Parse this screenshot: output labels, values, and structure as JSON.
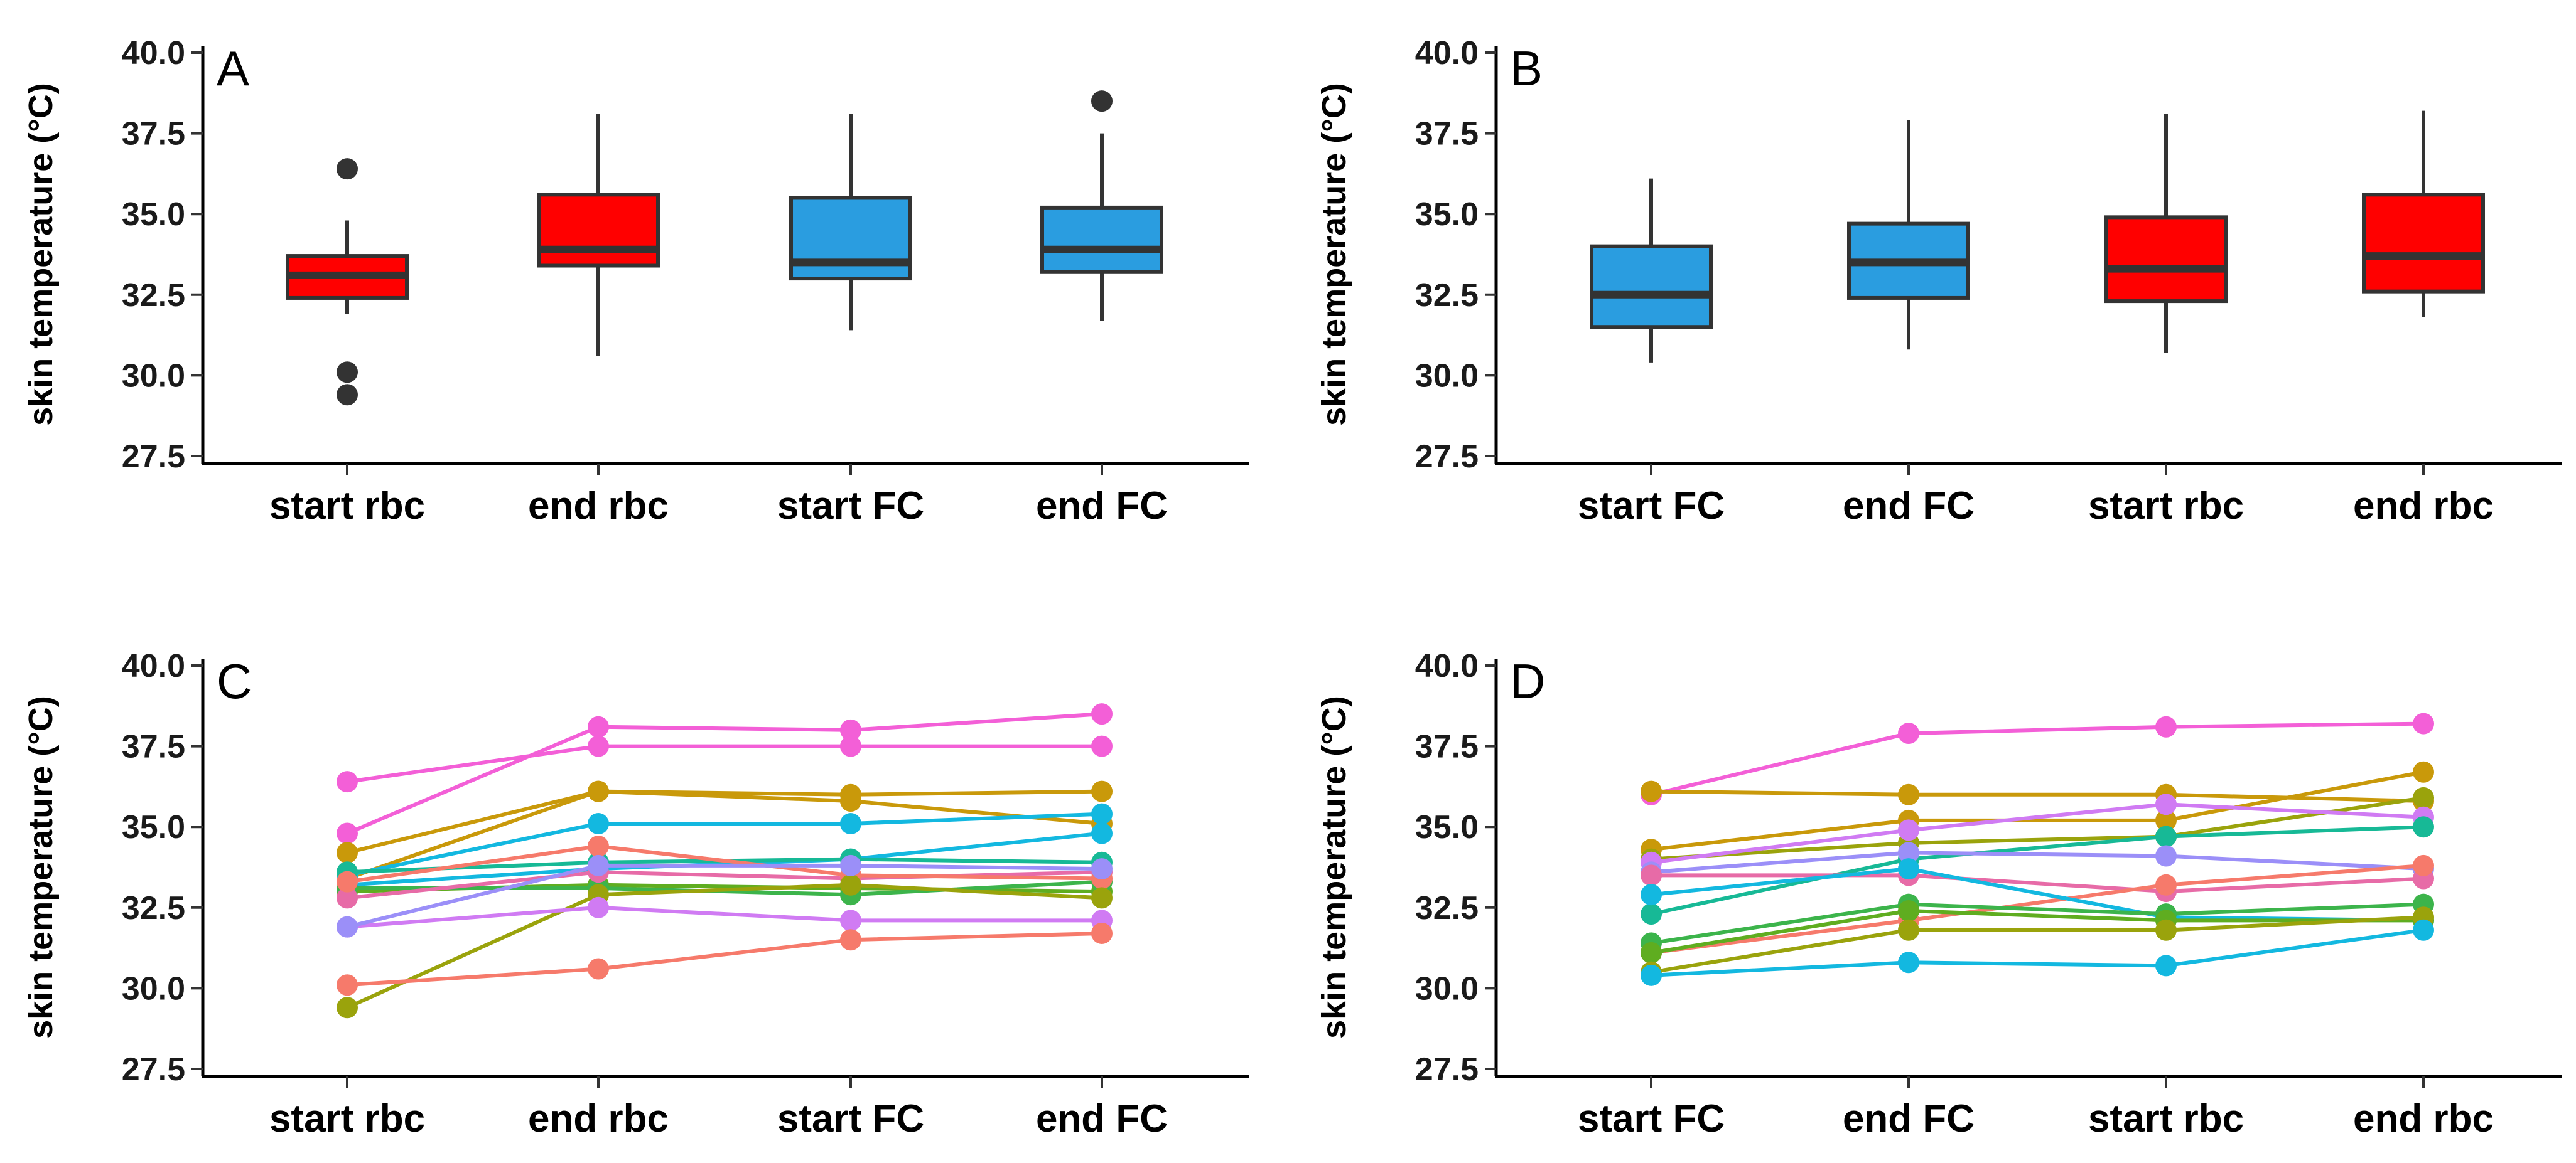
{
  "chart_data": [
    {
      "type": "box",
      "panel_label": "A",
      "ylabel": "skin temperature (°C)",
      "ylim": [
        27.5,
        40.0
      ],
      "yticks": [
        "27.5",
        "30.0",
        "32.5",
        "35.0",
        "37.5",
        "40.0"
      ],
      "categories": [
        "start rbc",
        "end rbc",
        "start FC",
        "end FC"
      ],
      "fills": [
        "#ff0000",
        "#ff0000",
        "#2a9de0",
        "#2a9de0"
      ],
      "boxes": [
        {
          "whisker_low": 31.9,
          "q1": 32.4,
          "median": 33.1,
          "q3": 33.7,
          "whisker_high": 34.8,
          "outliers": [
            36.4,
            30.1,
            29.4
          ]
        },
        {
          "whisker_low": 30.6,
          "q1": 33.4,
          "median": 33.9,
          "q3": 35.6,
          "whisker_high": 38.1,
          "outliers": []
        },
        {
          "whisker_low": 31.4,
          "q1": 33.0,
          "median": 33.5,
          "q3": 35.5,
          "whisker_high": 38.1,
          "outliers": []
        },
        {
          "whisker_low": 31.7,
          "q1": 33.2,
          "median": 33.9,
          "q3": 35.2,
          "whisker_high": 37.5,
          "outliers": [
            38.5
          ]
        }
      ]
    },
    {
      "type": "box",
      "panel_label": "B",
      "ylabel": "skin temperature (°C)",
      "ylim": [
        27.5,
        40.0
      ],
      "yticks": [
        "27.5",
        "30.0",
        "32.5",
        "35.0",
        "37.5",
        "40.0"
      ],
      "categories": [
        "start FC",
        "end FC",
        "start rbc",
        "end rbc"
      ],
      "fills": [
        "#2a9de0",
        "#2a9de0",
        "#ff0000",
        "#ff0000"
      ],
      "boxes": [
        {
          "whisker_low": 30.4,
          "q1": 31.5,
          "median": 32.5,
          "q3": 34.0,
          "whisker_high": 36.1,
          "outliers": []
        },
        {
          "whisker_low": 30.8,
          "q1": 32.4,
          "median": 33.5,
          "q3": 34.7,
          "whisker_high": 37.9,
          "outliers": []
        },
        {
          "whisker_low": 30.7,
          "q1": 32.3,
          "median": 33.3,
          "q3": 34.9,
          "whisker_high": 38.1,
          "outliers": []
        },
        {
          "whisker_low": 31.8,
          "q1": 32.6,
          "median": 33.7,
          "q3": 35.6,
          "whisker_high": 38.2,
          "outliers": []
        }
      ]
    },
    {
      "type": "line",
      "panel_label": "C",
      "ylabel": "skin temperature (°C)",
      "ylim": [
        27.5,
        40.0
      ],
      "yticks": [
        "27.5",
        "30.0",
        "32.5",
        "35.0",
        "37.5",
        "40.0"
      ],
      "categories": [
        "start rbc",
        "end rbc",
        "start FC",
        "end FC"
      ],
      "series": [
        {
          "color": "#f35fd7",
          "values": [
            34.8,
            38.1,
            38.0,
            38.5
          ]
        },
        {
          "color": "#f35fd7",
          "values": [
            36.4,
            37.5,
            37.5,
            37.5
          ]
        },
        {
          "color": "#c9990a",
          "values": [
            34.2,
            36.1,
            35.8,
            35.1
          ]
        },
        {
          "color": "#c9990a",
          "values": [
            33.4,
            36.1,
            36.0,
            36.1
          ]
        },
        {
          "color": "#13b8e0",
          "values": [
            33.5,
            35.1,
            35.1,
            35.4
          ]
        },
        {
          "color": "#13b8e0",
          "values": [
            33.2,
            33.7,
            34.0,
            34.8
          ]
        },
        {
          "color": "#17b996",
          "values": [
            33.6,
            33.9,
            34.0,
            33.9
          ]
        },
        {
          "color": "#5fad20",
          "values": [
            33.0,
            33.2,
            33.1,
            33.0
          ]
        },
        {
          "color": "#3cb44b",
          "values": [
            33.1,
            33.1,
            32.9,
            33.3
          ]
        },
        {
          "color": "#e76ba7",
          "values": [
            32.8,
            33.6,
            33.4,
            33.6
          ]
        },
        {
          "color": "#f67a6b",
          "values": [
            33.3,
            34.4,
            33.5,
            33.4
          ]
        },
        {
          "color": "#9aa30c",
          "values": [
            29.4,
            32.9,
            33.2,
            32.8
          ]
        },
        {
          "color": "#d07bf3",
          "values": [
            31.9,
            32.5,
            32.1,
            32.1
          ]
        },
        {
          "color": "#9b8ff8",
          "values": [
            31.9,
            33.8,
            33.8,
            33.7
          ]
        },
        {
          "color": "#f67a6b",
          "values": [
            30.1,
            30.6,
            31.5,
            31.7
          ]
        }
      ]
    },
    {
      "type": "line",
      "panel_label": "D",
      "ylabel": "skin temperature (°C)",
      "ylim": [
        27.5,
        40.0
      ],
      "yticks": [
        "27.5",
        "30.0",
        "32.5",
        "35.0",
        "37.5",
        "40.0"
      ],
      "categories": [
        "start FC",
        "end FC",
        "start rbc",
        "end rbc"
      ],
      "series": [
        {
          "color": "#f35fd7",
          "values": [
            36.0,
            37.9,
            38.1,
            38.2
          ]
        },
        {
          "color": "#c9990a",
          "values": [
            36.1,
            36.0,
            36.0,
            35.8
          ]
        },
        {
          "color": "#c9990a",
          "values": [
            34.3,
            35.2,
            35.2,
            36.7
          ]
        },
        {
          "color": "#9aa30c",
          "values": [
            34.0,
            34.5,
            34.7,
            35.9
          ]
        },
        {
          "color": "#d07bf3",
          "values": [
            33.9,
            34.9,
            35.7,
            35.3
          ]
        },
        {
          "color": "#17b996",
          "values": [
            32.3,
            34.0,
            34.7,
            35.0
          ]
        },
        {
          "color": "#9b8ff8",
          "values": [
            33.6,
            34.2,
            34.1,
            33.7
          ]
        },
        {
          "color": "#e76ba7",
          "values": [
            33.5,
            33.5,
            33.0,
            33.4
          ]
        },
        {
          "color": "#f67a6b",
          "values": [
            31.1,
            32.1,
            33.2,
            33.8
          ]
        },
        {
          "color": "#13b8e0",
          "values": [
            32.9,
            33.7,
            32.2,
            32.1
          ]
        },
        {
          "color": "#3cb44b",
          "values": [
            31.4,
            32.6,
            32.3,
            32.6
          ]
        },
        {
          "color": "#5fad20",
          "values": [
            31.1,
            32.4,
            32.1,
            32.1
          ]
        },
        {
          "color": "#9aa30c",
          "values": [
            30.5,
            31.8,
            31.8,
            32.2
          ]
        },
        {
          "color": "#13b8e0",
          "values": [
            30.4,
            30.8,
            30.7,
            31.8
          ]
        }
      ]
    }
  ]
}
